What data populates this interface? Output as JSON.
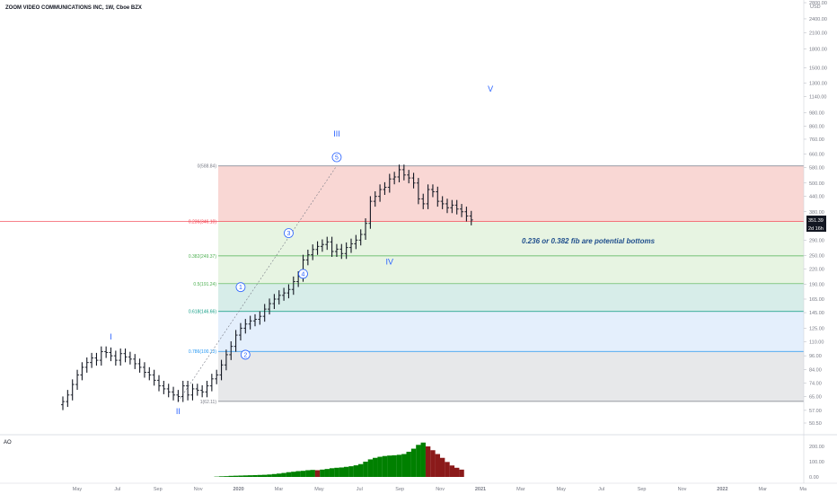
{
  "header": {
    "title": "ZOOM VIDEO COMMUNICATIONS INC, 1W, Cboe BZX",
    "currency": "USD"
  },
  "chart_data": {
    "type": "line",
    "price_scale": "log",
    "y_ticks": [
      50.5,
      57.0,
      65.0,
      74.0,
      84.0,
      96.0,
      110.0,
      125.0,
      145.0,
      165.0,
      190.0,
      220.0,
      250.0,
      290.0,
      380.0,
      440.0,
      500.0,
      580.0,
      660.0,
      760.0,
      860.0,
      980.0,
      1140.0,
      1300.0,
      1500.0,
      1800.0,
      2100.0,
      2400.0,
      2800.0
    ],
    "y_tick_labels": [
      "50.50",
      "57.00",
      "65.00",
      "74.00",
      "84.00",
      "96.00",
      "110.00",
      "125.00",
      "145.00",
      "165.00",
      "190.00",
      "220.00",
      "250.00",
      "290.00",
      "380.00",
      "440.00",
      "500.00",
      "580.00",
      "660.00",
      "760.00",
      "860.00",
      "980.00",
      "1140.00",
      "1300.00",
      "1500.00",
      "1800.00",
      "2100.00",
      "2400.00",
      "2800.00"
    ],
    "x_tick_labels": [
      "May",
      "Jul",
      "Sep",
      "Nov",
      "2020",
      "Mar",
      "May",
      "Jul",
      "Sep",
      "Nov",
      "2021",
      "Mar",
      "May",
      "Jul",
      "Sep",
      "Nov",
      "2022",
      "Mar",
      "Ma"
    ],
    "x_tick_bold": [
      false,
      false,
      false,
      false,
      true,
      false,
      false,
      false,
      false,
      false,
      true,
      false,
      false,
      false,
      false,
      false,
      true,
      false,
      false
    ],
    "last_price": "351.39",
    "countdown": "2d 16h",
    "weekly_close": [
      62,
      66,
      73,
      80,
      86,
      90,
      94,
      92,
      100,
      99,
      96,
      92,
      98,
      95,
      93,
      89,
      86,
      82,
      80,
      76,
      72,
      70,
      68,
      66,
      65,
      72,
      66,
      70,
      69,
      68,
      72,
      77,
      80,
      88,
      97,
      105,
      117,
      125,
      130,
      134,
      136,
      140,
      150,
      158,
      165,
      171,
      175,
      181,
      195,
      205,
      240,
      252,
      265,
      273,
      278,
      285,
      260,
      266,
      255,
      270,
      280,
      290,
      306,
      340,
      420,
      440,
      470,
      480,
      520,
      530,
      568,
      540,
      525,
      500,
      430,
      410,
      470,
      460,
      420,
      410,
      395,
      405,
      390,
      380,
      365,
      351.39
    ],
    "fib_levels": [
      {
        "ratio": 0,
        "price": 588.84,
        "label": "0(588.84)",
        "color": "#787b86"
      },
      {
        "ratio": 0.236,
        "price": 346.1,
        "label": "0.236(346.10)",
        "color": "#f23645"
      },
      {
        "ratio": 0.382,
        "price": 249.37,
        "label": "0.382(249.37)",
        "color": "#4caf50"
      },
      {
        "ratio": 0.5,
        "price": 191.24,
        "label": "0.5(191.24)",
        "color": "#4caf50"
      },
      {
        "ratio": 0.618,
        "price": 146.66,
        "label": "0.618(146.66)",
        "color": "#089981"
      },
      {
        "ratio": 0.786,
        "price": 100.13,
        "label": "0.786(100.13)",
        "color": "#2196f3"
      },
      {
        "ratio": 1,
        "price": 62.11,
        "label": "1(62.11)",
        "color": "#787b86"
      }
    ],
    "fib_zone_colors": [
      "#f7c9c6",
      "#dff0d8",
      "#dff0d8",
      "#c9e7e2",
      "#dbe9fb",
      "#dfe0e3"
    ],
    "waves": [
      {
        "label": "I",
        "week": 10,
        "price": 112,
        "style": "plain"
      },
      {
        "label": "II",
        "week": 24,
        "price": 55,
        "style": "plain"
      },
      {
        "label": "1",
        "week": 37,
        "price": 185,
        "style": "circle"
      },
      {
        "label": "2",
        "week": 38,
        "price": 97,
        "style": "circle"
      },
      {
        "label": "3",
        "week": 47,
        "price": 310,
        "style": "circle"
      },
      {
        "label": "4",
        "week": 50,
        "price": 210,
        "style": "circle"
      },
      {
        "label": "5",
        "week": 57,
        "price": 640,
        "style": "circle"
      },
      {
        "label": "III",
        "week": 57,
        "price": 780,
        "style": "plain"
      },
      {
        "label": "IV",
        "week": 68,
        "price": 230,
        "style": "plain"
      },
      {
        "label": "V",
        "week": 89,
        "price": 1200,
        "style": "plain"
      }
    ],
    "annotation": "0.236 or 0.382 fib are potential bottoms",
    "ao": {
      "title": "AO",
      "y_ticks": [
        0,
        100,
        200
      ],
      "y_tick_labels": [
        "0.00",
        "100.00",
        "200.00"
      ],
      "values": [
        2,
        4,
        5,
        7,
        8,
        9,
        10,
        11,
        12,
        13,
        14,
        16,
        19,
        22,
        26,
        31,
        34,
        38,
        40,
        44,
        46,
        44,
        48,
        52,
        57,
        60,
        62,
        66,
        70,
        76,
        84,
        100,
        115,
        125,
        132,
        137,
        140,
        142,
        145,
        150,
        165,
        185,
        210,
        225,
        200,
        175,
        150,
        125,
        98,
        75,
        60,
        48
      ]
    }
  }
}
